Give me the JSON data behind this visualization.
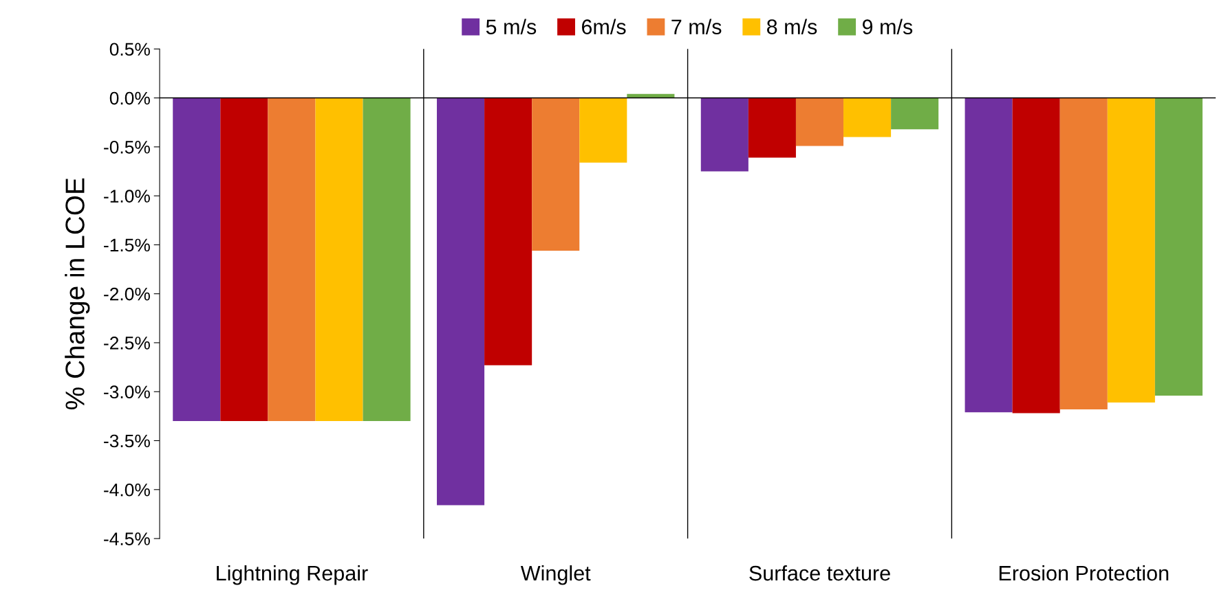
{
  "chart_data": {
    "type": "bar",
    "ylabel": "% Change in LCOE",
    "categories": [
      "Lightning Repair",
      "Winglet",
      "Surface texture",
      "Erosion Protection"
    ],
    "series": [
      {
        "name": "5 m/s",
        "color": "#7030a0",
        "values": [
          -3.3,
          -4.16,
          -0.75,
          -3.21
        ]
      },
      {
        "name": "6m/s",
        "color": "#c00000",
        "values": [
          -3.3,
          -2.73,
          -0.61,
          -3.22
        ]
      },
      {
        "name": "7 m/s",
        "color": "#ed7d31",
        "values": [
          -3.3,
          -1.56,
          -0.49,
          -3.18
        ]
      },
      {
        "name": "8 m/s",
        "color": "#ffc000",
        "values": [
          -3.3,
          -0.66,
          -0.4,
          -3.11
        ]
      },
      {
        "name": "9 m/s",
        "color": "#70ad47",
        "values": [
          -3.3,
          0.04,
          -0.32,
          -3.04
        ]
      }
    ],
    "ylim": [
      -4.5,
      0.5
    ],
    "yticks": [
      {
        "value": 0.5,
        "label": "0.5%"
      },
      {
        "value": 0,
        "label": "0.0%"
      },
      {
        "value": -0.5,
        "label": "-0.5%"
      },
      {
        "value": -1,
        "label": "-1.0%"
      },
      {
        "value": -1.5,
        "label": "-1.5%"
      },
      {
        "value": -2,
        "label": "-2.0%"
      },
      {
        "value": -2.5,
        "label": "-2.5%"
      },
      {
        "value": -3,
        "label": "-3.0%"
      },
      {
        "value": -3.5,
        "label": "-3.5%"
      },
      {
        "value": -4,
        "label": "-4.0%"
      },
      {
        "value": -4.5,
        "label": "-4.5%"
      }
    ],
    "ref_lines": [
      {
        "axis": "y",
        "value": 0,
        "color": "#000000"
      }
    ],
    "legend": "top"
  }
}
